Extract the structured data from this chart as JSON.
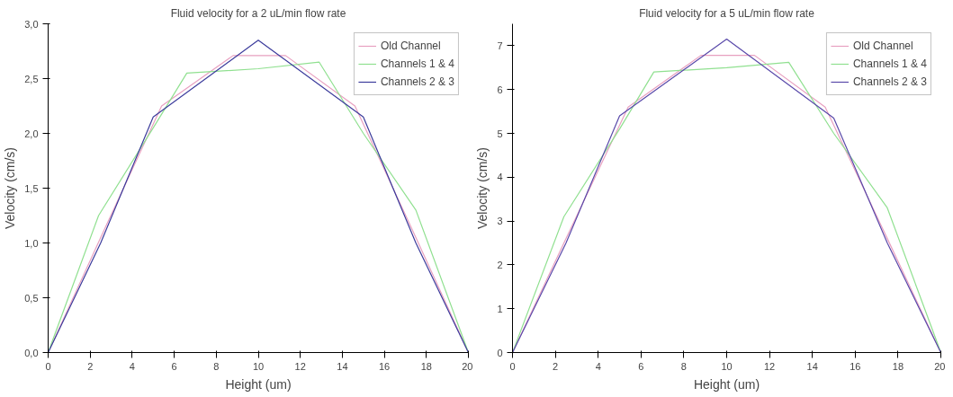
{
  "chart_data": [
    {
      "type": "line",
      "title": "Fluid velocity for a 2 uL/min flow rate",
      "xlabel": "Height (um)",
      "ylabel": "Velocity (cm/s)",
      "xlim": [
        0,
        20
      ],
      "ylim": [
        0,
        3
      ],
      "xticks": [
        0,
        2,
        4,
        6,
        8,
        10,
        12,
        14,
        16,
        18,
        20
      ],
      "yticks": [
        {
          "value": 0,
          "label": "0,0"
        },
        {
          "value": 0.5,
          "label": "0,5"
        },
        {
          "value": 1,
          "label": "1,0"
        },
        {
          "value": 1.5,
          "label": "1,5"
        },
        {
          "value": 2,
          "label": "2,0"
        },
        {
          "value": 2.5,
          "label": "2,5"
        },
        {
          "value": 3,
          "label": "3,0"
        }
      ],
      "legend": "top right",
      "grid": false,
      "series": [
        {
          "name": "Old Channel",
          "color": "#e8a0c0",
          "x": [
            0,
            2.5,
            5.4,
            8.8,
            11.3,
            14.6,
            17.5,
            20
          ],
          "values": [
            0,
            1.05,
            2.25,
            2.71,
            2.71,
            2.25,
            1.05,
            0
          ]
        },
        {
          "name": "Channels 1 & 4",
          "color": "#90e090",
          "x": [
            0,
            2.4,
            5,
            6.6,
            10,
            12.9,
            15,
            17.5,
            20
          ],
          "values": [
            0,
            1.25,
            2.05,
            2.55,
            2.59,
            2.65,
            2.0,
            1.3,
            0
          ]
        },
        {
          "name": "Channels 2 & 3",
          "color": "#3c3c9c",
          "x": [
            0,
            2.5,
            5,
            10,
            15,
            17.5,
            20
          ],
          "values": [
            0,
            1.0,
            2.15,
            2.85,
            2.15,
            1.0,
            0
          ]
        }
      ]
    },
    {
      "type": "line",
      "title": "Fluid velocity for a 5 uL/min flow rate",
      "xlabel": "Height (um)",
      "ylabel": "Velocity (cm/s)",
      "xlim": [
        0,
        20
      ],
      "ylim": [
        0,
        7.5
      ],
      "xticks": [
        0,
        2,
        4,
        6,
        8,
        10,
        12,
        14,
        16,
        18,
        20
      ],
      "yticks": [
        0,
        1,
        2,
        3,
        4,
        5,
        6,
        7
      ],
      "legend": "top right",
      "grid": false,
      "series": [
        {
          "name": "Old Channel",
          "color": "#e8a0c0",
          "x": [
            0,
            2.5,
            5.4,
            8.8,
            11.3,
            14.6,
            17.5,
            20
          ],
          "values": [
            0,
            2.6,
            5.6,
            6.78,
            6.78,
            5.6,
            2.6,
            0
          ]
        },
        {
          "name": "Channels 1 & 4",
          "color": "#90e090",
          "x": [
            0,
            2.4,
            5,
            6.6,
            10,
            12.9,
            15,
            17.5,
            20
          ],
          "values": [
            0,
            3.1,
            5.1,
            6.4,
            6.5,
            6.62,
            5.0,
            3.3,
            0
          ]
        },
        {
          "name": "Channels 2 & 3",
          "color": "#5a4aaa",
          "x": [
            0,
            2.5,
            5,
            10,
            15,
            17.5,
            20
          ],
          "values": [
            0,
            2.5,
            5.4,
            7.15,
            5.35,
            2.5,
            0
          ]
        }
      ]
    }
  ]
}
